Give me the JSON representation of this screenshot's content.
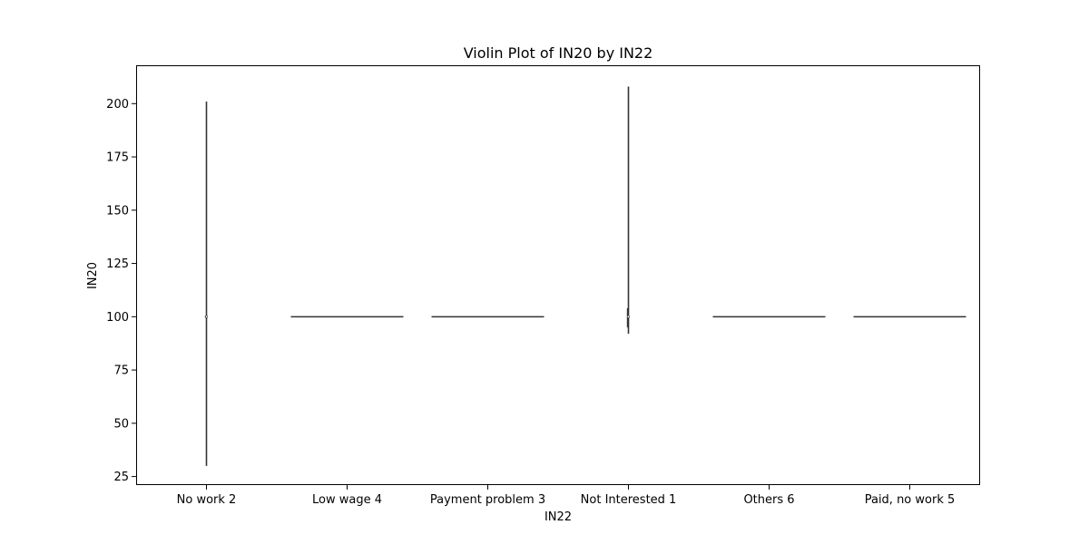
{
  "chart_data": {
    "type": "violin",
    "title": "Violin Plot of IN20 by IN22",
    "xlabel": "IN22",
    "ylabel": "IN20",
    "ylim": [
      21,
      218
    ],
    "yticks": [
      25,
      50,
      75,
      100,
      125,
      150,
      175,
      200
    ],
    "grid": false,
    "categories": [
      "No work 2",
      "Low wage 4",
      "Payment problem 3",
      "Not Interested 1",
      "Others 6",
      "Paid, no work 5"
    ],
    "violins": [
      {
        "category": "No work 2",
        "min": 30,
        "max": 201,
        "median": 100,
        "q1": 99.5,
        "q3": 100.5,
        "shape": "vertical"
      },
      {
        "category": "Low wage 4",
        "min": 100,
        "max": 100,
        "median": 100,
        "q1": 100,
        "q3": 100,
        "shape": "flat"
      },
      {
        "category": "Payment problem 3",
        "min": 100,
        "max": 100,
        "median": 100,
        "q1": 100,
        "q3": 100,
        "shape": "flat"
      },
      {
        "category": "Not Interested 1",
        "min": 92,
        "max": 208,
        "median": 100,
        "q1": 95,
        "q3": 104,
        "shape": "vertical"
      },
      {
        "category": "Others 6",
        "min": 100,
        "max": 100,
        "median": 100,
        "q1": 100,
        "q3": 100,
        "shape": "flat"
      },
      {
        "category": "Paid, no work 5",
        "min": 100,
        "max": 100,
        "median": 100,
        "q1": 100,
        "q3": 100,
        "shape": "flat"
      }
    ],
    "colors": {
      "stroke": "#333333",
      "frame": "#000000"
    }
  }
}
